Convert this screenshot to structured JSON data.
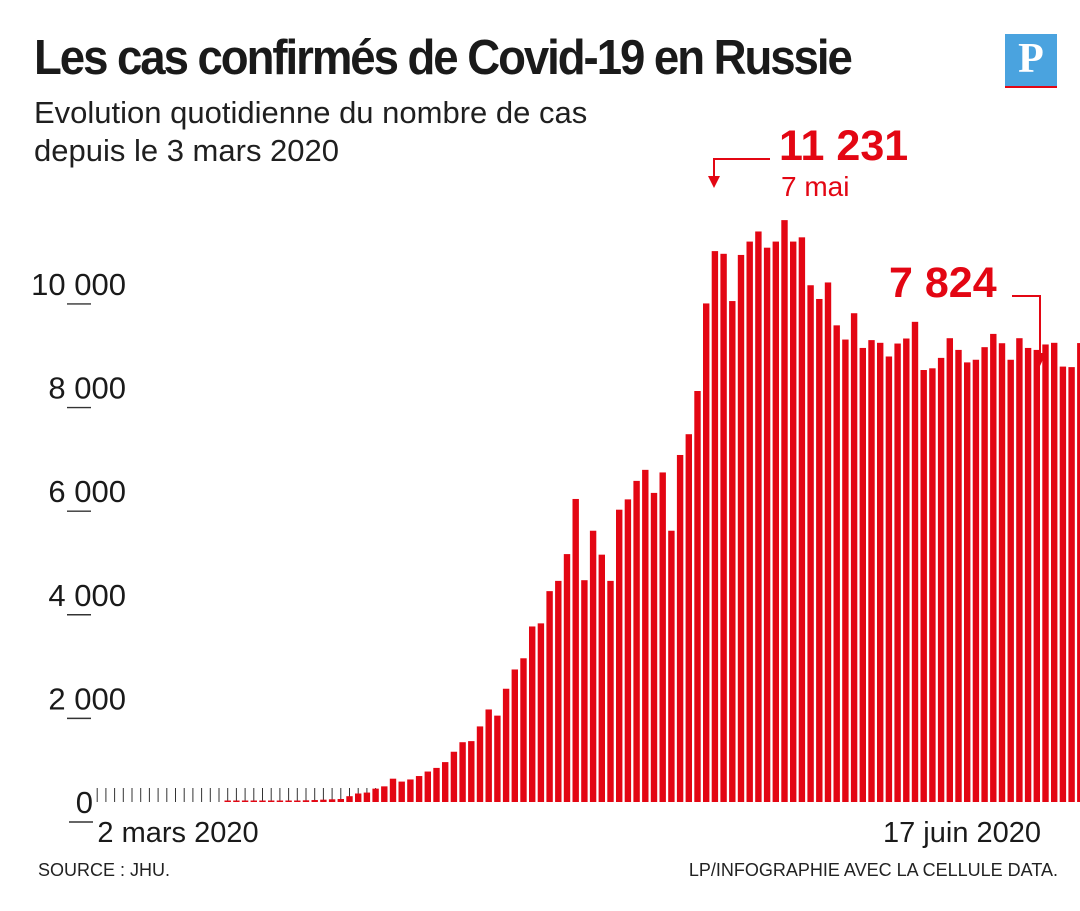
{
  "header": {
    "title": "Les cas confirmés de Covid-19 en Russie",
    "subtitle_line1": "Evolution quotidienne du nombre de cas",
    "subtitle_line2": "depuis le 3 mars 2020",
    "logo_letter": "P"
  },
  "footer": {
    "source": "SOURCE : JHU.",
    "credit": "LP/INFOGRAPHIE AVEC LA CELLULE DATA."
  },
  "colors": {
    "bar": "#e30613",
    "annotation": "#e30613",
    "text": "#1a1a1a",
    "logo": "#4aa3df"
  },
  "chart_data": {
    "type": "bar",
    "ylim": [
      0,
      10500
    ],
    "yticks": [
      {
        "value": 0,
        "label": "0"
      },
      {
        "value": 2000,
        "label": "2 000"
      },
      {
        "value": 4000,
        "label": "4 000"
      },
      {
        "value": 6000,
        "label": "6 000"
      },
      {
        "value": 8000,
        "label": "8 000"
      },
      {
        "value": 10000,
        "label": "10 000"
      }
    ],
    "x_start_label": "2 mars 2020",
    "x_end_label": "17 juin 2020",
    "grid": false,
    "values": [
      0,
      0,
      0,
      0,
      0,
      0,
      0,
      0,
      0,
      0,
      0,
      0,
      0,
      0,
      0,
      3,
      2,
      4,
      5,
      11,
      20,
      15,
      25,
      28,
      33,
      38,
      45,
      52,
      58,
      112,
      164,
      182,
      258,
      302,
      450,
      394,
      435,
      501,
      588,
      658,
      770,
      970,
      1154,
      1175,
      1459,
      1786,
      1667,
      2186,
      2558,
      2774,
      3388,
      3448,
      4070,
      4268,
      4785,
      5849,
      4281,
      5236,
      4774,
      4268,
      5642,
      5841,
      6198,
      6411,
      5966,
      6361,
      5236,
      6698,
      7099,
      7933,
      9623,
      10633,
      10581,
      9669,
      10559,
      10817,
      11012,
      10699,
      10817,
      11231,
      10817,
      10899,
      9974,
      9709,
      10028,
      9200,
      8926,
      9434,
      8764,
      8915,
      8863,
      8599,
      8849,
      8946,
      9268,
      8338,
      8371,
      8572,
      8952,
      8726,
      8485,
      8536,
      8779,
      9035,
      8855,
      8536,
      8952,
      8764,
      8726,
      8831,
      8863,
      8404,
      8394,
      8858,
      9035,
      8779,
      8831,
      8248,
      7855,
      7840,
      7824
    ]
  },
  "annotations": {
    "peak": {
      "value_label": "11 231",
      "date_label": "7 mai",
      "bar_value": 11231
    },
    "last": {
      "value_label": "7 824",
      "bar_value": 7824
    }
  }
}
